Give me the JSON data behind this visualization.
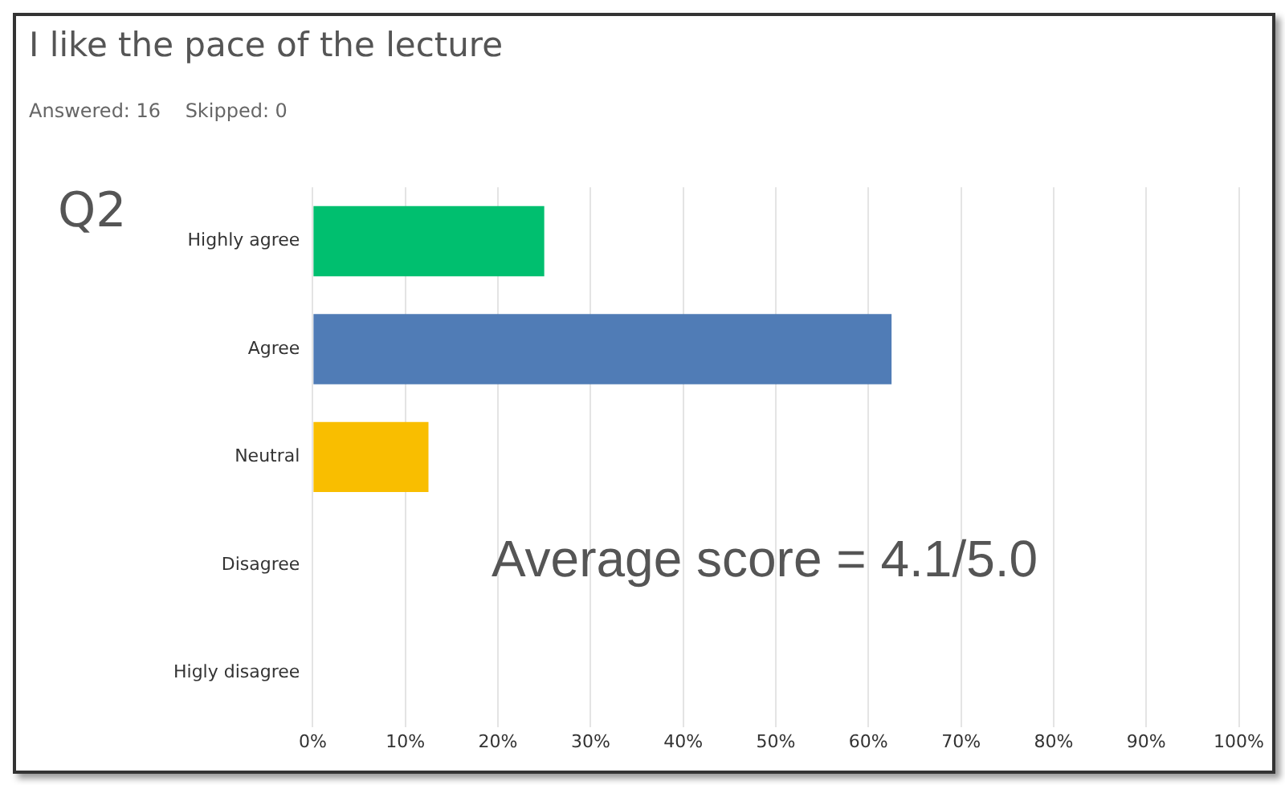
{
  "chart_data": {
    "type": "bar",
    "orientation": "horizontal",
    "title": "I like the pace of the lecture",
    "subtitle": "Answered: 16    Skipped: 0",
    "annotations": [
      "Q2",
      "Average score = 4.1/5.0"
    ],
    "categories": [
      "Highly agree",
      "Agree",
      "Neutral",
      "Disagree",
      "Higly disagree"
    ],
    "values": [
      25,
      62.5,
      12.5,
      0,
      0
    ],
    "colors": [
      "#00bf6f",
      "#507cb6",
      "#f9be00",
      "#6bc8cd",
      "#a4a4a4"
    ],
    "xlim": [
      0,
      100
    ],
    "xticks": [
      {
        "value": 0,
        "label": "0%"
      },
      {
        "value": 10,
        "label": "10%"
      },
      {
        "value": 20,
        "label": "20%"
      },
      {
        "value": 30,
        "label": "30%"
      },
      {
        "value": 40,
        "label": "40%"
      },
      {
        "value": 50,
        "label": "50%"
      },
      {
        "value": 60,
        "label": "60%"
      },
      {
        "value": 70,
        "label": "70%"
      },
      {
        "value": 80,
        "label": "80%"
      },
      {
        "value": 90,
        "label": "90%"
      },
      {
        "value": 100,
        "label": "100%"
      }
    ],
    "grid": "x"
  }
}
